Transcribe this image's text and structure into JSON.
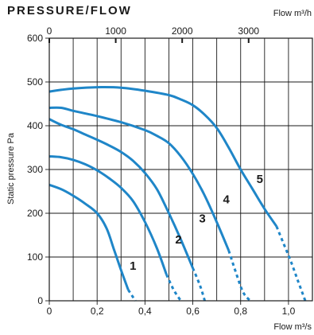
{
  "chart_data": {
    "type": "line",
    "title": "PRESSURE/FLOW",
    "top_axis_label": "Flow m³/h",
    "xlabel": "Flow m³/s",
    "ylabel": "Static pressure Pa",
    "xlim": [
      0,
      1.1
    ],
    "ylim": [
      0,
      600
    ],
    "x_ticks": [
      "0",
      "0,2",
      "0,4",
      "0,6",
      "0,8",
      "1,0"
    ],
    "x_tick_values": [
      0,
      0.2,
      0.4,
      0.6,
      0.8,
      1.0
    ],
    "top_ticks": [
      "0",
      "1000",
      "2000",
      "3000"
    ],
    "top_tick_values": [
      0,
      1000,
      2000,
      3000
    ],
    "y_ticks": [
      "0",
      "100",
      "200",
      "300",
      "400",
      "500",
      "600"
    ],
    "y_tick_values": [
      0,
      100,
      200,
      300,
      400,
      500,
      600
    ],
    "grid": true,
    "line_color": "#1f86c8",
    "series": [
      {
        "name": "1",
        "solid": [
          [
            0,
            265
          ],
          [
            0.05,
            255
          ],
          [
            0.1,
            240
          ],
          [
            0.15,
            222
          ],
          [
            0.2,
            200
          ],
          [
            0.24,
            165
          ],
          [
            0.27,
            118
          ],
          [
            0.3,
            70
          ],
          [
            0.33,
            25
          ]
        ],
        "dashed": [
          [
            0.33,
            25
          ],
          [
            0.36,
            0
          ]
        ]
      },
      {
        "name": "2",
        "solid": [
          [
            0,
            330
          ],
          [
            0.05,
            328
          ],
          [
            0.1,
            322
          ],
          [
            0.15,
            312
          ],
          [
            0.2,
            298
          ],
          [
            0.25,
            280
          ],
          [
            0.3,
            258
          ],
          [
            0.35,
            228
          ],
          [
            0.4,
            180
          ],
          [
            0.45,
            120
          ],
          [
            0.49,
            60
          ]
        ],
        "dashed": [
          [
            0.49,
            60
          ],
          [
            0.52,
            25
          ],
          [
            0.55,
            0
          ]
        ]
      },
      {
        "name": "3",
        "solid": [
          [
            0,
            415
          ],
          [
            0.05,
            402
          ],
          [
            0.1,
            392
          ],
          [
            0.15,
            380
          ],
          [
            0.2,
            368
          ],
          [
            0.25,
            355
          ],
          [
            0.3,
            340
          ],
          [
            0.35,
            320
          ],
          [
            0.4,
            292
          ],
          [
            0.45,
            255
          ],
          [
            0.5,
            200
          ],
          [
            0.55,
            140
          ],
          [
            0.6,
            75
          ]
        ],
        "dashed": [
          [
            0.6,
            75
          ],
          [
            0.63,
            35
          ],
          [
            0.65,
            0
          ]
        ]
      },
      {
        "name": "4",
        "solid": [
          [
            0,
            441
          ],
          [
            0.05,
            441
          ],
          [
            0.1,
            434
          ],
          [
            0.2,
            422
          ],
          [
            0.3,
            408
          ],
          [
            0.4,
            390
          ],
          [
            0.45,
            377
          ],
          [
            0.5,
            360
          ],
          [
            0.55,
            330
          ],
          [
            0.6,
            290
          ],
          [
            0.65,
            240
          ],
          [
            0.7,
            180
          ],
          [
            0.75,
            115
          ]
        ],
        "dashed": [
          [
            0.75,
            115
          ],
          [
            0.78,
            65
          ],
          [
            0.81,
            20
          ],
          [
            0.84,
            0
          ]
        ]
      },
      {
        "name": "5",
        "solid": [
          [
            0,
            478
          ],
          [
            0.05,
            482
          ],
          [
            0.1,
            485
          ],
          [
            0.2,
            488
          ],
          [
            0.3,
            487
          ],
          [
            0.4,
            480
          ],
          [
            0.5,
            470
          ],
          [
            0.55,
            460
          ],
          [
            0.6,
            447
          ],
          [
            0.65,
            425
          ],
          [
            0.7,
            395
          ],
          [
            0.75,
            350
          ],
          [
            0.8,
            300
          ],
          [
            0.85,
            255
          ],
          [
            0.9,
            210
          ],
          [
            0.95,
            170
          ]
        ],
        "dashed": [
          [
            0.95,
            170
          ],
          [
            0.98,
            130
          ],
          [
            1.01,
            90
          ],
          [
            1.04,
            45
          ],
          [
            1.07,
            0
          ]
        ]
      }
    ],
    "curve_labels": [
      {
        "text": "1",
        "x": 0.35,
        "y": 80
      },
      {
        "text": "2",
        "x": 0.54,
        "y": 140
      },
      {
        "text": "3",
        "x": 0.64,
        "y": 188
      },
      {
        "text": "4",
        "x": 0.74,
        "y": 232
      },
      {
        "text": "5",
        "x": 0.88,
        "y": 278
      }
    ]
  }
}
